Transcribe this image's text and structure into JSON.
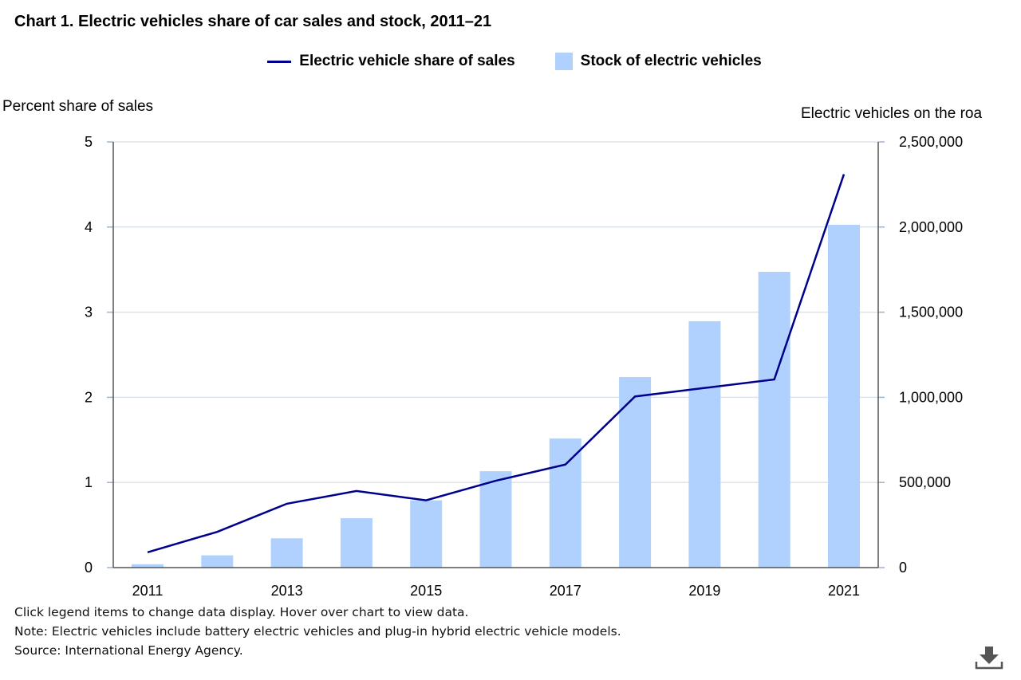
{
  "title": "Chart 1. Electric vehicles share of car sales and stock, 2011–21",
  "notes": {
    "hint": "Click legend items to change data display. Hover over chart to view data.",
    "note": "Note: Electric vehicles include battery electric vehicles and plug-in hybrid electric vehicle models.",
    "source": "Source: International Energy Agency."
  },
  "download_icon": "download-icon",
  "chart_data": {
    "type": "bar+line",
    "title": "Chart 1. Electric vehicles share of car sales and stock, 2011–21",
    "categories": [
      2011,
      2012,
      2013,
      2014,
      2015,
      2016,
      2017,
      2018,
      2019,
      2020,
      2021
    ],
    "x_tick_labels": [
      "2011",
      "2013",
      "2015",
      "2017",
      "2019",
      "2021"
    ],
    "ylabel_left": "Percent share of sales",
    "ylabel_right": "Electric vehicles on the roa",
    "ylim_left": [
      0,
      5
    ],
    "ylim_right": [
      0,
      2500000
    ],
    "y_ticks_left": [
      "0",
      "1",
      "2",
      "3",
      "4",
      "5"
    ],
    "y_ticks_right": [
      "0",
      "500,000",
      "1,000,000",
      "1,500,000",
      "2,000,000",
      "2,500,000"
    ],
    "grid": true,
    "legend_position": "top",
    "series": [
      {
        "name": "Electric vehicle share of sales",
        "type": "line",
        "axis": "left",
        "color": "#00008b",
        "values": [
          0.18,
          0.42,
          0.75,
          0.9,
          0.79,
          1.02,
          1.21,
          2.01,
          2.11,
          2.21,
          4.62
        ]
      },
      {
        "name": "Stock of electric vehicles",
        "type": "bar",
        "axis": "right",
        "color": "#b0d1fd",
        "values": [
          20000,
          72000,
          172000,
          290000,
          395000,
          566000,
          758000,
          1119000,
          1447000,
          1737000,
          2013000
        ]
      }
    ]
  }
}
